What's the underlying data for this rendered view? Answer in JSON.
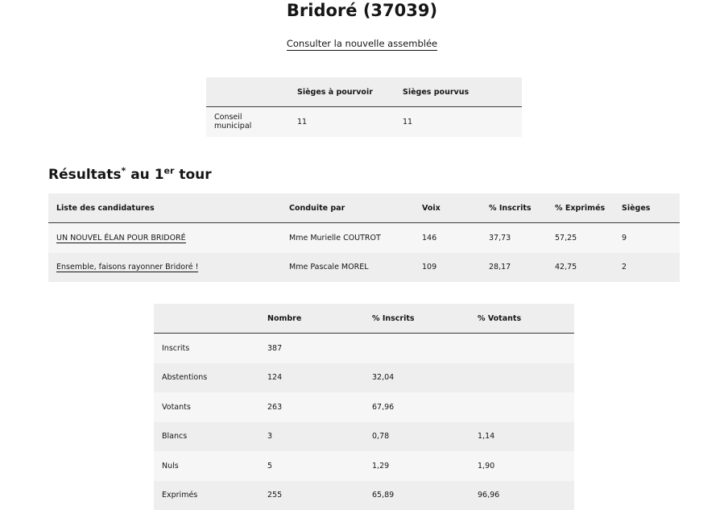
{
  "header": {
    "title": "Bridoré (37039)",
    "link": "Consulter la nouvelle assemblée"
  },
  "seats_table": {
    "headers": [
      "Sièges à pourvoir",
      "Sièges pourvus"
    ],
    "rows": [
      [
        "Conseil municipal",
        "11",
        "11"
      ]
    ]
  },
  "results_heading": {
    "parts": [
      "Résultats",
      "*",
      "au 1",
      "er",
      "tour"
    ]
  },
  "results_table": {
    "headers": [
      "Liste des candidatures",
      "Conduite par",
      "Voix",
      "% Inscrits",
      "% Exprimés",
      "Sièges"
    ],
    "rows": [
      [
        "UN NOUVEL ÉLAN POUR BRIDORÉ",
        "Mme Murielle COUTROT",
        "146",
        "37,73",
        "57,25",
        "9"
      ],
      [
        "Ensemble, faisons rayonner Bridoré !",
        "Mme Pascale MOREL",
        "109",
        "28,17",
        "42,75",
        "2"
      ]
    ]
  },
  "participation_table": {
    "headers": [
      "Nombre",
      "% Inscrits",
      "% Votants"
    ],
    "rows": [
      [
        "Inscrits",
        "387"
      ],
      [
        "Abstentions",
        "124",
        "32,04"
      ],
      [
        "Votants",
        "263",
        "67,96"
      ],
      [
        "Blancs",
        "3",
        "0,78",
        "1,14"
      ],
      [
        "Nuls",
        "5",
        "1,29",
        "1,90"
      ],
      [
        "Exprimés",
        "255",
        "65,89",
        "96,96"
      ]
    ]
  }
}
